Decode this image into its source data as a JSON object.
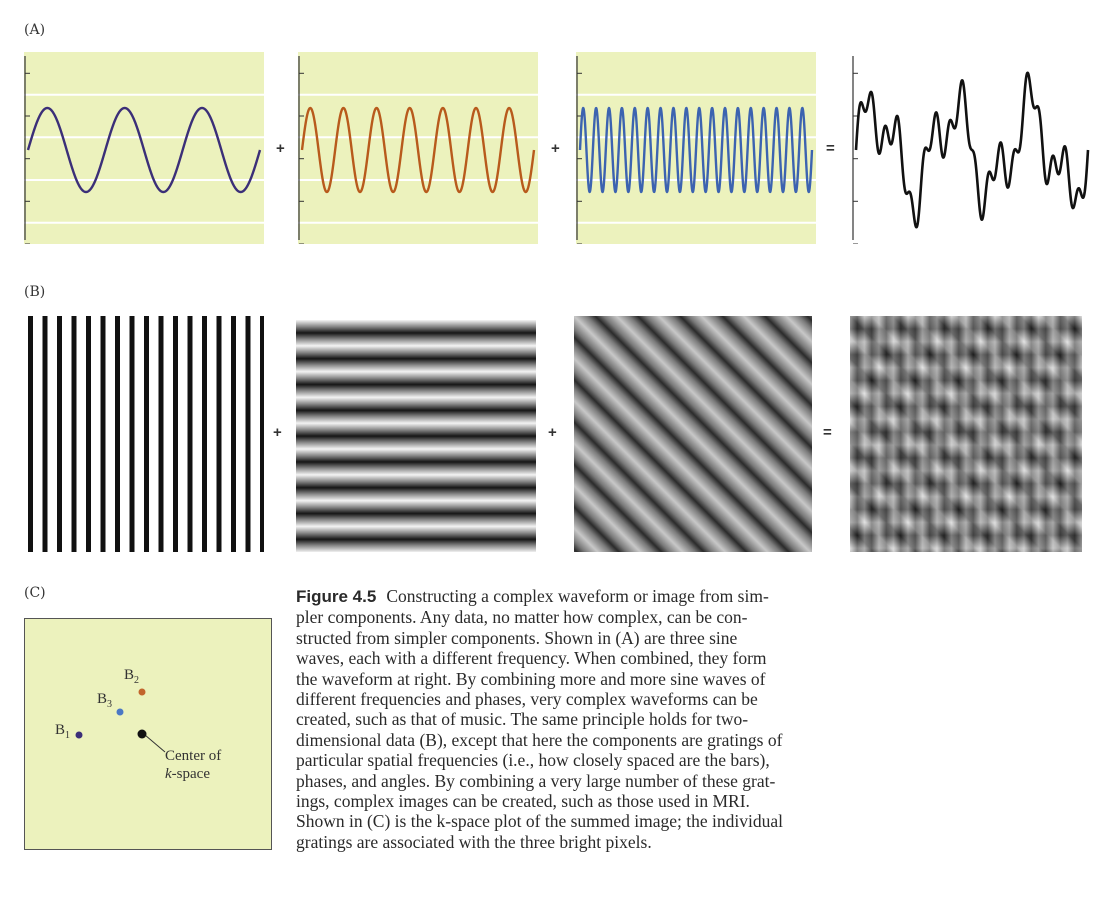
{
  "panels": {
    "a_label": "(A)",
    "b_label": "(B)",
    "c_label": "(C)"
  },
  "operators": {
    "plus": "+",
    "equals": "="
  },
  "colors": {
    "panel_bg": "#ecf2bd",
    "wave1": "#3b2f78",
    "wave2": "#b85a1c",
    "wave3": "#3c63b0",
    "sum": "#111111",
    "b1_dot": "#3b2f78",
    "b2_dot": "#c2652c",
    "b3_dot": "#4b78c4",
    "center_dot": "#111111"
  },
  "chart_data": [
    {
      "type": "line",
      "title": "",
      "series": [
        {
          "name": "",
          "cycles": 3
        }
      ]
    },
    {
      "type": "line",
      "title": "",
      "series": [
        {
          "name": "",
          "cycles": 7
        }
      ]
    },
    {
      "type": "line",
      "title": "",
      "series": [
        {
          "name": "",
          "cycles": 18
        }
      ]
    },
    {
      "type": "line",
      "title": "",
      "series": [
        {
          "name": "",
          "components": [
            3,
            7,
            18
          ]
        }
      ]
    }
  ],
  "kspace": {
    "b1": {
      "base": "B",
      "sub": "1"
    },
    "b2": {
      "base": "B",
      "sub": "2"
    },
    "b3": {
      "base": "B",
      "sub": "3"
    },
    "center_line1": "Center of",
    "center_line2_italic": "k",
    "center_line2_rest": "-space"
  },
  "caption": {
    "title": "Figure 4.5",
    "lines": [
      "Constructing a complex waveform or image from sim-",
      "pler components. Any data, no matter how complex, can be con-",
      "structed from simpler components. Shown in (A) are three sine",
      "waves, each with a different frequency. When combined, they form",
      "the waveform at right. By combining more and more sine waves of",
      "different frequencies and phases, very complex waveforms can be",
      "created, such as that of music. The same principle holds for two-",
      "dimensional data (B), except that here the components are gratings of",
      "particular spatial frequencies (i.e., how closely spaced are the bars),",
      "phases, and angles. By combining a very large number of these grat-",
      "ings, complex images can be created, such as those used in MRI.",
      "Shown in (C) is the k-space plot of the summed image; the individual",
      "gratings are associated with the three bright pixels."
    ]
  }
}
